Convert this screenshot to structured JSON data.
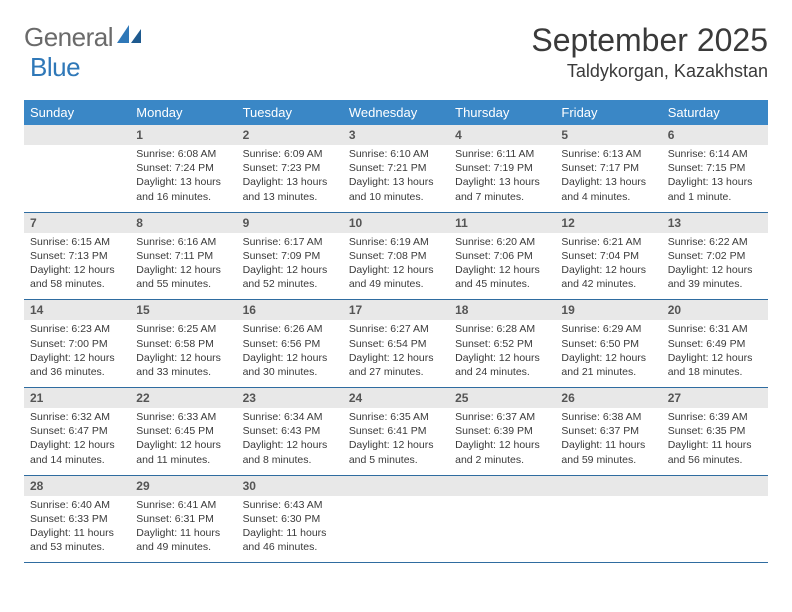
{
  "brand": {
    "name1": "General",
    "name2": "Blue"
  },
  "title": "September 2025",
  "location": "Taldykorgan, Kazakhstan",
  "colors": {
    "header_bg": "#3a87c6",
    "header_text": "#ffffff",
    "daynum_bg": "#e8e8e8",
    "border": "#2f6ca0",
    "brand_gray": "#6a6a6a",
    "brand_blue": "#2f78b8"
  },
  "weekdays": [
    "Sunday",
    "Monday",
    "Tuesday",
    "Wednesday",
    "Thursday",
    "Friday",
    "Saturday"
  ],
  "weeks": [
    [
      {
        "n": "",
        "sunrise": "",
        "sunset": "",
        "daylight": ""
      },
      {
        "n": "1",
        "sunrise": "Sunrise: 6:08 AM",
        "sunset": "Sunset: 7:24 PM",
        "daylight": "Daylight: 13 hours and 16 minutes."
      },
      {
        "n": "2",
        "sunrise": "Sunrise: 6:09 AM",
        "sunset": "Sunset: 7:23 PM",
        "daylight": "Daylight: 13 hours and 13 minutes."
      },
      {
        "n": "3",
        "sunrise": "Sunrise: 6:10 AM",
        "sunset": "Sunset: 7:21 PM",
        "daylight": "Daylight: 13 hours and 10 minutes."
      },
      {
        "n": "4",
        "sunrise": "Sunrise: 6:11 AM",
        "sunset": "Sunset: 7:19 PM",
        "daylight": "Daylight: 13 hours and 7 minutes."
      },
      {
        "n": "5",
        "sunrise": "Sunrise: 6:13 AM",
        "sunset": "Sunset: 7:17 PM",
        "daylight": "Daylight: 13 hours and 4 minutes."
      },
      {
        "n": "6",
        "sunrise": "Sunrise: 6:14 AM",
        "sunset": "Sunset: 7:15 PM",
        "daylight": "Daylight: 13 hours and 1 minute."
      }
    ],
    [
      {
        "n": "7",
        "sunrise": "Sunrise: 6:15 AM",
        "sunset": "Sunset: 7:13 PM",
        "daylight": "Daylight: 12 hours and 58 minutes."
      },
      {
        "n": "8",
        "sunrise": "Sunrise: 6:16 AM",
        "sunset": "Sunset: 7:11 PM",
        "daylight": "Daylight: 12 hours and 55 minutes."
      },
      {
        "n": "9",
        "sunrise": "Sunrise: 6:17 AM",
        "sunset": "Sunset: 7:09 PM",
        "daylight": "Daylight: 12 hours and 52 minutes."
      },
      {
        "n": "10",
        "sunrise": "Sunrise: 6:19 AM",
        "sunset": "Sunset: 7:08 PM",
        "daylight": "Daylight: 12 hours and 49 minutes."
      },
      {
        "n": "11",
        "sunrise": "Sunrise: 6:20 AM",
        "sunset": "Sunset: 7:06 PM",
        "daylight": "Daylight: 12 hours and 45 minutes."
      },
      {
        "n": "12",
        "sunrise": "Sunrise: 6:21 AM",
        "sunset": "Sunset: 7:04 PM",
        "daylight": "Daylight: 12 hours and 42 minutes."
      },
      {
        "n": "13",
        "sunrise": "Sunrise: 6:22 AM",
        "sunset": "Sunset: 7:02 PM",
        "daylight": "Daylight: 12 hours and 39 minutes."
      }
    ],
    [
      {
        "n": "14",
        "sunrise": "Sunrise: 6:23 AM",
        "sunset": "Sunset: 7:00 PM",
        "daylight": "Daylight: 12 hours and 36 minutes."
      },
      {
        "n": "15",
        "sunrise": "Sunrise: 6:25 AM",
        "sunset": "Sunset: 6:58 PM",
        "daylight": "Daylight: 12 hours and 33 minutes."
      },
      {
        "n": "16",
        "sunrise": "Sunrise: 6:26 AM",
        "sunset": "Sunset: 6:56 PM",
        "daylight": "Daylight: 12 hours and 30 minutes."
      },
      {
        "n": "17",
        "sunrise": "Sunrise: 6:27 AM",
        "sunset": "Sunset: 6:54 PM",
        "daylight": "Daylight: 12 hours and 27 minutes."
      },
      {
        "n": "18",
        "sunrise": "Sunrise: 6:28 AM",
        "sunset": "Sunset: 6:52 PM",
        "daylight": "Daylight: 12 hours and 24 minutes."
      },
      {
        "n": "19",
        "sunrise": "Sunrise: 6:29 AM",
        "sunset": "Sunset: 6:50 PM",
        "daylight": "Daylight: 12 hours and 21 minutes."
      },
      {
        "n": "20",
        "sunrise": "Sunrise: 6:31 AM",
        "sunset": "Sunset: 6:49 PM",
        "daylight": "Daylight: 12 hours and 18 minutes."
      }
    ],
    [
      {
        "n": "21",
        "sunrise": "Sunrise: 6:32 AM",
        "sunset": "Sunset: 6:47 PM",
        "daylight": "Daylight: 12 hours and 14 minutes."
      },
      {
        "n": "22",
        "sunrise": "Sunrise: 6:33 AM",
        "sunset": "Sunset: 6:45 PM",
        "daylight": "Daylight: 12 hours and 11 minutes."
      },
      {
        "n": "23",
        "sunrise": "Sunrise: 6:34 AM",
        "sunset": "Sunset: 6:43 PM",
        "daylight": "Daylight: 12 hours and 8 minutes."
      },
      {
        "n": "24",
        "sunrise": "Sunrise: 6:35 AM",
        "sunset": "Sunset: 6:41 PM",
        "daylight": "Daylight: 12 hours and 5 minutes."
      },
      {
        "n": "25",
        "sunrise": "Sunrise: 6:37 AM",
        "sunset": "Sunset: 6:39 PM",
        "daylight": "Daylight: 12 hours and 2 minutes."
      },
      {
        "n": "26",
        "sunrise": "Sunrise: 6:38 AM",
        "sunset": "Sunset: 6:37 PM",
        "daylight": "Daylight: 11 hours and 59 minutes."
      },
      {
        "n": "27",
        "sunrise": "Sunrise: 6:39 AM",
        "sunset": "Sunset: 6:35 PM",
        "daylight": "Daylight: 11 hours and 56 minutes."
      }
    ],
    [
      {
        "n": "28",
        "sunrise": "Sunrise: 6:40 AM",
        "sunset": "Sunset: 6:33 PM",
        "daylight": "Daylight: 11 hours and 53 minutes."
      },
      {
        "n": "29",
        "sunrise": "Sunrise: 6:41 AM",
        "sunset": "Sunset: 6:31 PM",
        "daylight": "Daylight: 11 hours and 49 minutes."
      },
      {
        "n": "30",
        "sunrise": "Sunrise: 6:43 AM",
        "sunset": "Sunset: 6:30 PM",
        "daylight": "Daylight: 11 hours and 46 minutes."
      },
      {
        "n": "",
        "sunrise": "",
        "sunset": "",
        "daylight": ""
      },
      {
        "n": "",
        "sunrise": "",
        "sunset": "",
        "daylight": ""
      },
      {
        "n": "",
        "sunrise": "",
        "sunset": "",
        "daylight": ""
      },
      {
        "n": "",
        "sunrise": "",
        "sunset": "",
        "daylight": ""
      }
    ]
  ]
}
